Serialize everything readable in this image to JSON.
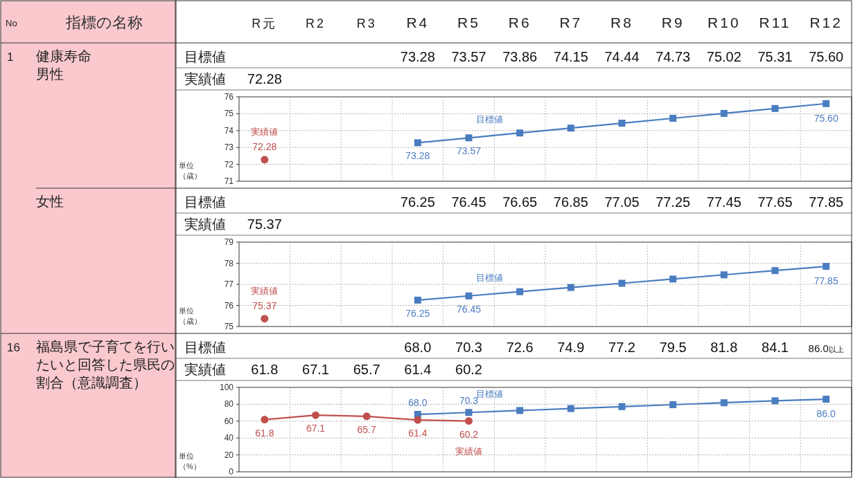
{
  "chart_data": [
    {
      "type": "line",
      "ylabel": "単位（歳）",
      "categories": [
        "R元",
        "R2",
        "R3",
        "R4",
        "R5",
        "R6",
        "R7",
        "R8",
        "R9",
        "R10",
        "R11",
        "R12"
      ],
      "ylim": [
        71,
        76
      ],
      "yticks": [
        71,
        72,
        73,
        74,
        75,
        76
      ],
      "grid": true,
      "series": [
        {
          "name": "目標値",
          "color": "#4a7cc0",
          "marker": "square",
          "values": [
            null,
            null,
            null,
            73.28,
            73.57,
            73.86,
            74.15,
            74.44,
            74.73,
            75.02,
            75.31,
            75.6
          ],
          "value_labels": [
            null,
            null,
            null,
            "73.28",
            "73.57",
            "73.86",
            "74.15",
            "74.44",
            "74.73",
            "75.02",
            "75.31",
            "75.60"
          ]
        },
        {
          "name": "実績値",
          "color": "#c0504d",
          "marker": "circle",
          "data_labels": true,
          "values": [
            72.28,
            null,
            null,
            null,
            null,
            null,
            null,
            null,
            null,
            null,
            null,
            null
          ],
          "value_labels": [
            "72.28",
            null,
            null,
            null,
            null,
            null,
            null,
            null,
            null,
            null,
            null,
            null
          ]
        }
      ],
      "annotations": [
        "No",
        "指標の名称",
        "1",
        "健康寿命",
        "男性",
        {
          "text": "73.28",
          "x": "R4",
          "y": 73.28
        },
        {
          "text": "73.57",
          "x": "R5",
          "y": 73.57
        },
        {
          "text": "75.60",
          "x": "R12",
          "y": 75.6
        }
      ]
    },
    {
      "type": "line",
      "ylabel": "単位（歳）",
      "categories": [
        "R元",
        "R2",
        "R3",
        "R4",
        "R5",
        "R6",
        "R7",
        "R8",
        "R9",
        "R10",
        "R11",
        "R12"
      ],
      "ylim": [
        75,
        79
      ],
      "yticks": [
        75,
        76,
        77,
        78,
        79
      ],
      "grid": true,
      "tick_labels": "y",
      "series": [
        {
          "name": "目標値",
          "color": "#4a7cc0",
          "marker": "square",
          "values": [
            null,
            null,
            null,
            76.25,
            76.45,
            76.65,
            76.85,
            77.05,
            77.25,
            77.45,
            77.65,
            77.85
          ],
          "value_labels": [
            null,
            null,
            null,
            "76.25",
            "76.45",
            "76.65",
            "76.85",
            "77.05",
            "77.25",
            "77.45",
            "77.65",
            "77.85"
          ]
        },
        {
          "name": "実績値",
          "color": "#c0504d",
          "marker": "circle",
          "data_labels": true,
          "values": [
            75.37,
            null,
            null,
            null,
            null,
            null,
            null,
            null,
            null,
            null,
            null,
            null
          ],
          "value_labels": [
            "75.37",
            null,
            null,
            null,
            null,
            null,
            null,
            null,
            null,
            null,
            null,
            null
          ]
        }
      ],
      "annotations": [
        "女性",
        {
          "text": "76.25",
          "x": "R4",
          "y": 76.25
        },
        {
          "text": "76.45",
          "x": "R5",
          "y": 76.45
        },
        {
          "text": "77.85",
          "x": "R12",
          "y": 77.85
        }
      ]
    },
    {
      "type": "line",
      "ylabel": "単位（%）",
      "categories": [
        "R元",
        "R2",
        "R3",
        "R4",
        "R5",
        "R6",
        "R7",
        "R8",
        "R9",
        "R10",
        "R11",
        "R12"
      ],
      "ylim": [
        0,
        100
      ],
      "yticks": [
        0,
        20,
        40,
        60,
        80,
        100
      ],
      "grid": true,
      "tick_labels": "y",
      "series": [
        {
          "name": "目標値",
          "color": "#4a7cc0",
          "marker": "square",
          "values": [
            null,
            null,
            null,
            68.0,
            70.3,
            72.6,
            74.9,
            77.2,
            79.5,
            81.8,
            84.1,
            86.0
          ],
          "value_labels": [
            null,
            null,
            null,
            "68.0",
            "70.3",
            "72.6",
            "74.9",
            "77.2",
            "79.5",
            "81.8",
            "84.1",
            "86.0以上"
          ]
        },
        {
          "name": "実績値",
          "color": "#c0504d",
          "marker": "circle",
          "data_labels": true,
          "values": [
            61.8,
            67.1,
            65.7,
            61.4,
            60.2,
            null,
            null,
            null,
            null,
            null,
            null,
            null
          ],
          "value_labels": [
            "61.8",
            "67.1",
            "65.7",
            "61.4",
            "60.2",
            null,
            null,
            null,
            null,
            null,
            null,
            null
          ]
        }
      ],
      "annotations": [
        "16",
        "福島県で子育てを行いたいと回答した県民の割合（意識調査）",
        {
          "text": "68.0",
          "x": "R4",
          "y": 68.0
        },
        {
          "text": "70.3",
          "x": "R5",
          "y": 70.3
        },
        {
          "text": "86.0",
          "x": "R12",
          "y": 86.0
        }
      ]
    }
  ]
}
